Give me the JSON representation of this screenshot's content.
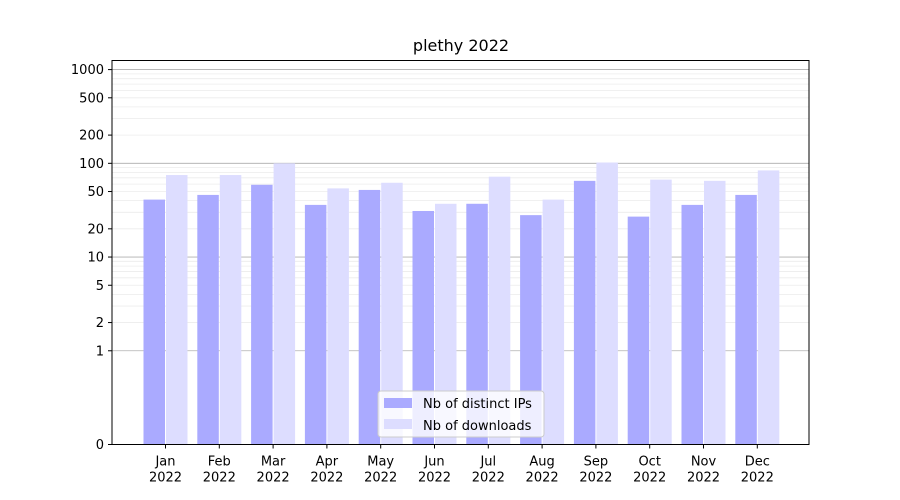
{
  "chart_data": {
    "type": "bar",
    "title": "plethy 2022",
    "xlabel": "",
    "ylabel": "",
    "yscale": "symlog",
    "ylim": [
      0,
      1250
    ],
    "y_tick_labels": [
      "0",
      "1",
      "2",
      "5",
      "10",
      "20",
      "50",
      "100",
      "200",
      "500",
      "1000"
    ],
    "y_tick_values": [
      0,
      1,
      2,
      5,
      10,
      20,
      50,
      100,
      200,
      500,
      1000
    ],
    "grid": true,
    "legend_position": "bottom-center",
    "categories": [
      "Jan\n2022",
      "Feb\n2022",
      "Mar\n2022",
      "Apr\n2022",
      "May\n2022",
      "Jun\n2022",
      "Jul\n2022",
      "Aug\n2022",
      "Sep\n2022",
      "Oct\n2022",
      "Nov\n2022",
      "Dec\n2022"
    ],
    "series": [
      {
        "name": "Nb of distinct IPs",
        "color": "#aaaaff",
        "values": [
          41,
          46,
          59,
          36,
          52,
          31,
          37,
          28,
          65,
          27,
          36,
          46
        ]
      },
      {
        "name": "Nb of downloads",
        "color": "#ddddff",
        "values": [
          75,
          75,
          100,
          54,
          62,
          37,
          72,
          41,
          102,
          67,
          65,
          84
        ]
      }
    ]
  }
}
